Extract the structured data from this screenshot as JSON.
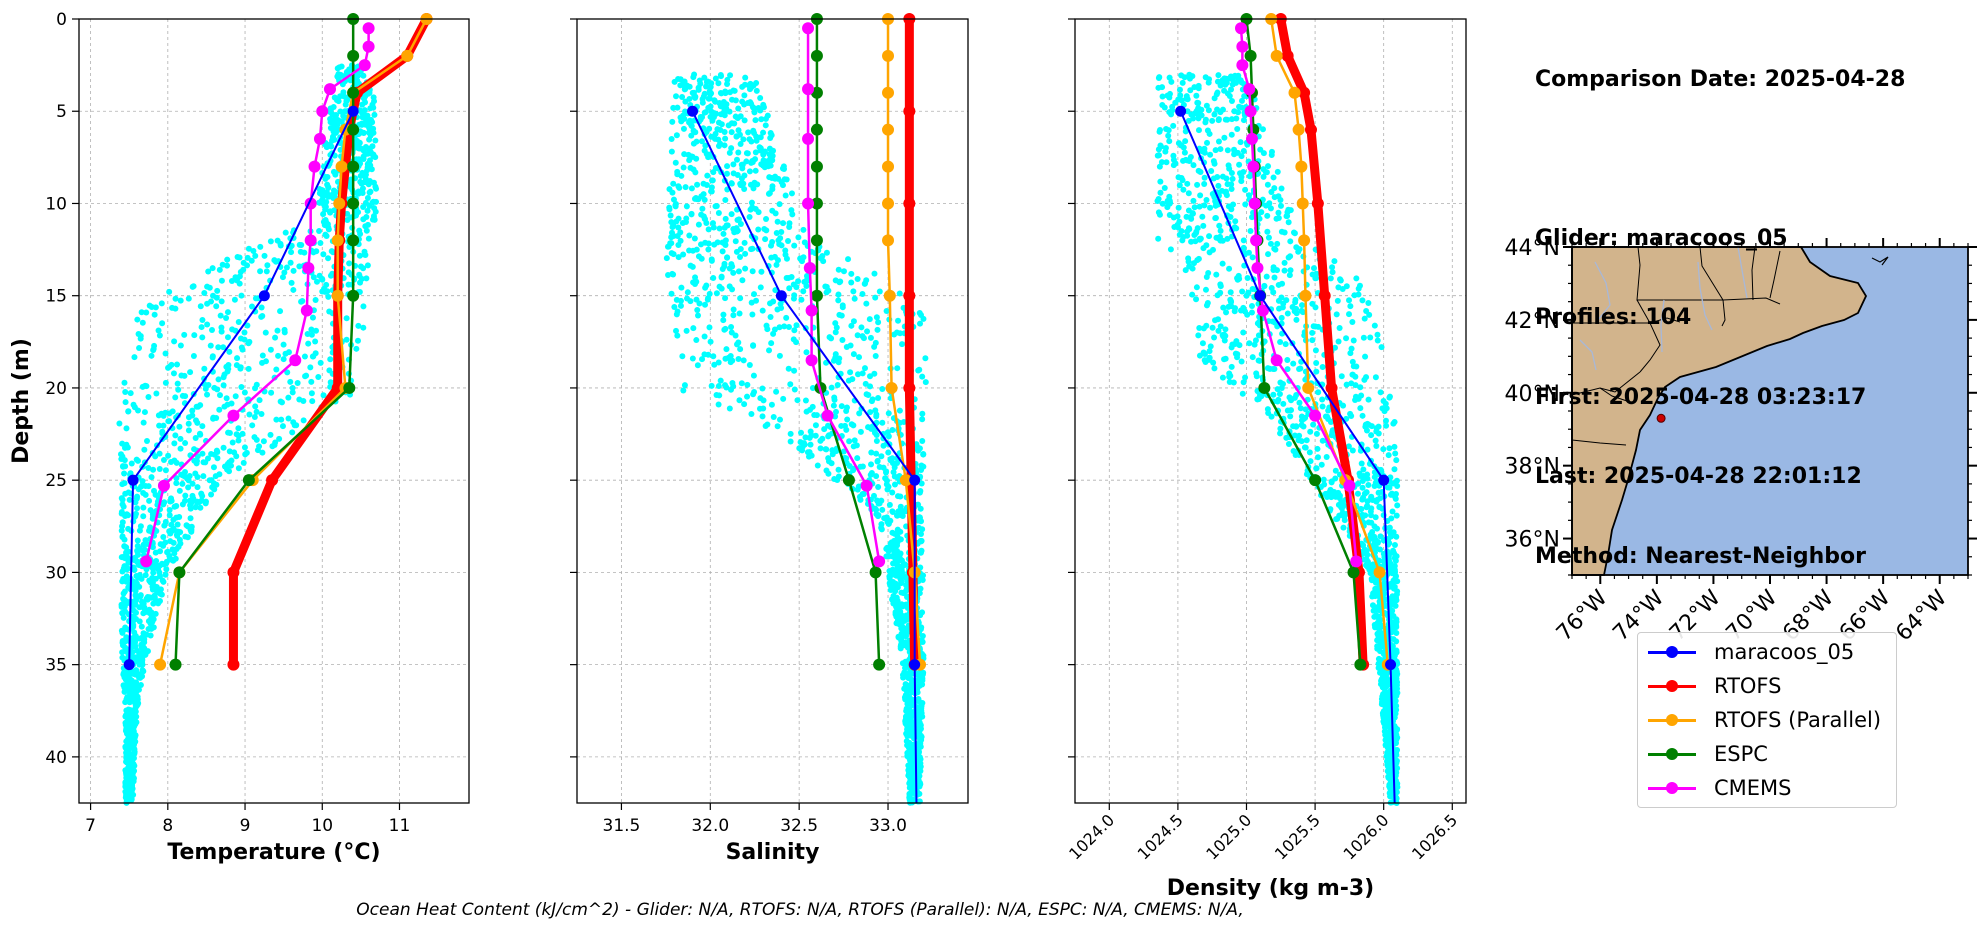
{
  "info": {
    "comparison_date": "Comparison Date: 2025-04-28",
    "glider": "Glider: maracoos_05",
    "profiles": "Profiles: 104",
    "first": "First: 2025-04-28 03:23:17",
    "last": "Last: 2025-04-28 22:01:12",
    "method": "Method: Nearest-Neighbor"
  },
  "footer": "Ocean Heat Content (kJ/cm^2) - Glider: N/A,  RTOFS: N/A,  RTOFS (Parallel): N/A,  ESPC: N/A,  CMEMS: N/A,",
  "legend": [
    {
      "label": "maracoos_05",
      "color": "#0000ff"
    },
    {
      "label": "RTOFS",
      "color": "#ff0000"
    },
    {
      "label": "RTOFS (Parallel)",
      "color": "#ffa500"
    },
    {
      "label": "ESPC",
      "color": "#008000"
    },
    {
      "label": "CMEMS",
      "color": "#ff00ff"
    }
  ],
  "colors": {
    "scatter": "#00ffff",
    "grid": "#b0b0b0",
    "land": "#d2b48c",
    "ocean": "#9ab8e4",
    "river": "#a8b8d8"
  },
  "chart_data": [
    {
      "type": "line",
      "xlabel": "Temperature (°C)",
      "ylabel": "Depth (m)",
      "xlim": [
        6.85,
        11.9
      ],
      "ylim": [
        42.5,
        0
      ],
      "xticks": [
        7,
        8,
        9,
        10,
        11
      ],
      "yticks": [
        0,
        5,
        10,
        15,
        20,
        25,
        30,
        35,
        40
      ],
      "grid": true,
      "series": [
        {
          "name": "maracoos_05",
          "color": "#0000ff",
          "width": 2,
          "depth": [
            5,
            15,
            25,
            35
          ],
          "values": [
            10.4,
            9.25,
            7.55,
            7.5
          ]
        },
        {
          "name": "RTOFS",
          "color": "#ff0000",
          "width": 9,
          "depth": [
            0,
            2,
            4,
            6,
            8,
            10,
            12,
            15,
            20,
            25,
            30,
            35
          ],
          "values": [
            11.35,
            11.1,
            10.45,
            10.35,
            10.3,
            10.25,
            10.22,
            10.2,
            10.2,
            9.35,
            8.85,
            8.85
          ]
        },
        {
          "name": "RTOFS (Parallel)",
          "color": "#ffa500",
          "width": 2.5,
          "depth": [
            0,
            2,
            4,
            6,
            8,
            10,
            12,
            15,
            20,
            25,
            30,
            35
          ],
          "values": [
            11.35,
            11.1,
            10.4,
            10.3,
            10.25,
            10.22,
            10.2,
            10.2,
            10.3,
            9.1,
            8.15,
            7.9
          ]
        },
        {
          "name": "ESPC",
          "color": "#008000",
          "width": 2.5,
          "depth": [
            0,
            2,
            4,
            6,
            8,
            10,
            12,
            15,
            20,
            25,
            30,
            35
          ],
          "values": [
            10.4,
            10.4,
            10.4,
            10.4,
            10.4,
            10.4,
            10.4,
            10.4,
            10.35,
            9.05,
            8.15,
            8.1
          ]
        },
        {
          "name": "CMEMS",
          "color": "#ff00ff",
          "width": 2.5,
          "depth": [
            0.5,
            1.5,
            2.5,
            3.8,
            5,
            6.5,
            8,
            10,
            12,
            13.5,
            15.8,
            18.5,
            21.5,
            25.3,
            29.4
          ],
          "values": [
            10.6,
            10.6,
            10.55,
            10.1,
            10.0,
            9.97,
            9.9,
            9.85,
            9.85,
            9.82,
            9.8,
            9.65,
            8.85,
            7.95,
            7.72
          ]
        }
      ]
    },
    {
      "type": "line",
      "xlabel": "Salinity",
      "xlim": [
        31.25,
        33.45
      ],
      "ylim": [
        42.5,
        0
      ],
      "xticks": [
        31.5,
        32.0,
        32.5,
        33.0
      ],
      "yticks": [
        0,
        5,
        10,
        15,
        20,
        25,
        30,
        35,
        40
      ],
      "grid": true,
      "series": [
        {
          "name": "maracoos_05",
          "color": "#0000ff",
          "width": 2,
          "depth": [
            5,
            15,
            25,
            35,
            42.5
          ],
          "values": [
            31.9,
            32.4,
            33.15,
            33.15,
            33.16
          ]
        },
        {
          "name": "RTOFS",
          "color": "#ff0000",
          "width": 9,
          "depth": [
            0,
            5,
            10,
            15,
            20,
            25,
            30,
            35
          ],
          "values": [
            33.12,
            33.12,
            33.12,
            33.12,
            33.12,
            33.13,
            33.14,
            33.15
          ]
        },
        {
          "name": "RTOFS (Parallel)",
          "color": "#ffa500",
          "width": 2.5,
          "depth": [
            0,
            2,
            4,
            6,
            8,
            10,
            12,
            15,
            20,
            25,
            30,
            35
          ],
          "values": [
            33.0,
            33.0,
            33.0,
            33.0,
            33.0,
            33.0,
            33.0,
            33.01,
            33.02,
            33.1,
            33.15,
            33.18
          ]
        },
        {
          "name": "ESPC",
          "color": "#008000",
          "width": 2.5,
          "depth": [
            0,
            2,
            4,
            6,
            8,
            10,
            12,
            15,
            20,
            25,
            30,
            35
          ],
          "values": [
            32.6,
            32.6,
            32.6,
            32.6,
            32.6,
            32.6,
            32.6,
            32.6,
            32.62,
            32.78,
            32.93,
            32.95
          ]
        },
        {
          "name": "CMEMS",
          "color": "#ff00ff",
          "width": 2.5,
          "depth": [
            0.5,
            3.8,
            6.5,
            10,
            13.5,
            15.8,
            18.5,
            21.5,
            25.3,
            29.4
          ],
          "values": [
            32.55,
            32.55,
            32.55,
            32.55,
            32.56,
            32.57,
            32.57,
            32.66,
            32.88,
            32.95
          ]
        }
      ]
    },
    {
      "type": "line",
      "xlabel": "Density (kg m-3)",
      "xlim": [
        1023.75,
        1026.6
      ],
      "ylim": [
        42.5,
        0
      ],
      "xticks": [
        1024.0,
        1024.5,
        1025.0,
        1025.5,
        1026.0,
        1026.5
      ],
      "yticks": [
        0,
        5,
        10,
        15,
        20,
        25,
        30,
        35,
        40
      ],
      "grid": true,
      "series": [
        {
          "name": "maracoos_05",
          "color": "#0000ff",
          "width": 2,
          "depth": [
            5,
            15,
            25,
            35,
            42.5
          ],
          "values": [
            1024.52,
            1025.1,
            1026.0,
            1026.05,
            1026.08
          ]
        },
        {
          "name": "RTOFS",
          "color": "#ff0000",
          "width": 9,
          "depth": [
            0,
            2,
            4,
            6,
            10,
            15,
            20,
            25,
            30,
            35
          ],
          "values": [
            1025.25,
            1025.3,
            1025.42,
            1025.47,
            1025.52,
            1025.57,
            1025.62,
            1025.74,
            1025.82,
            1025.85
          ]
        },
        {
          "name": "RTOFS (Parallel)",
          "color": "#ffa500",
          "width": 2.5,
          "depth": [
            0,
            2,
            4,
            6,
            8,
            10,
            12,
            15,
            20,
            25,
            30,
            35
          ],
          "values": [
            1025.18,
            1025.22,
            1025.35,
            1025.38,
            1025.4,
            1025.41,
            1025.42,
            1025.43,
            1025.45,
            1025.72,
            1025.97,
            1026.03
          ]
        },
        {
          "name": "ESPC",
          "color": "#008000",
          "width": 2.5,
          "depth": [
            0,
            2,
            4,
            6,
            8,
            10,
            12,
            15,
            20,
            25,
            30,
            35
          ],
          "values": [
            1025.0,
            1025.03,
            1025.04,
            1025.05,
            1025.06,
            1025.07,
            1025.08,
            1025.1,
            1025.13,
            1025.5,
            1025.78,
            1025.83
          ]
        },
        {
          "name": "CMEMS",
          "color": "#ff00ff",
          "width": 2.5,
          "depth": [
            0.5,
            1.5,
            2.5,
            3.8,
            5,
            6.5,
            8,
            10,
            12,
            13.5,
            15.8,
            18.5,
            21.5,
            25.3,
            29.4
          ],
          "values": [
            1024.96,
            1024.97,
            1024.97,
            1025.02,
            1025.03,
            1025.04,
            1025.05,
            1025.06,
            1025.07,
            1025.08,
            1025.12,
            1025.22,
            1025.5,
            1025.75,
            1025.8
          ]
        }
      ]
    },
    {
      "type": "map",
      "lon_ticks": [
        "76°W",
        "74°W",
        "72°W",
        "70°W",
        "68°W",
        "66°W",
        "64°W"
      ],
      "lat_ticks": [
        "44°N",
        "42°N",
        "40°N",
        "38°N",
        "36°N"
      ],
      "lon_range": [
        -77,
        -63
      ],
      "lat_range": [
        35,
        44
      ],
      "glider_location": {
        "lon": -73.85,
        "lat": 39.3
      }
    }
  ]
}
